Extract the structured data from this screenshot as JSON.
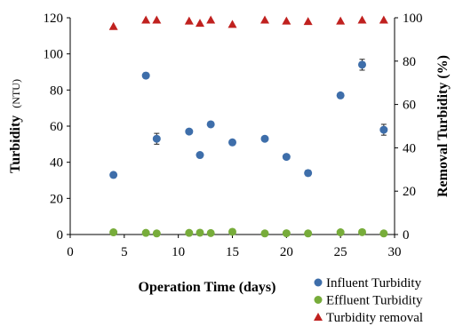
{
  "chart_data": {
    "type": "scatter",
    "xlabel": "Operation Time (days)",
    "ylabel_main": "Turbidity",
    "ylabel_unit": "(NTU)",
    "y2label": "Removal Turbidity (%)",
    "xlim": [
      0,
      30
    ],
    "ylim": [
      0,
      120
    ],
    "y2lim": [
      0,
      100
    ],
    "xticks": [
      0,
      5,
      10,
      15,
      20,
      25,
      30
    ],
    "yticks": [
      0,
      20,
      40,
      60,
      80,
      100,
      120
    ],
    "y2ticks": [
      0,
      20,
      40,
      60,
      80,
      100
    ],
    "grid": false,
    "legend_position": "bottom-right",
    "series": [
      {
        "name": "Influent Turbidity",
        "axis": "left",
        "marker": "circle",
        "color": "#3e6eaa",
        "x": [
          4,
          7,
          8,
          11,
          12,
          13,
          15,
          18,
          20,
          22,
          25,
          27,
          29
        ],
        "y": [
          33,
          88,
          53,
          57,
          44,
          61,
          51,
          53,
          43,
          34,
          77,
          94,
          58
        ],
        "error": [
          1,
          1.5,
          3,
          1,
          1,
          1,
          1,
          1,
          1,
          1.5,
          1,
          3,
          3
        ]
      },
      {
        "name": "Effluent Turbidity",
        "axis": "left",
        "marker": "circle",
        "color": "#77ac3a",
        "x": [
          4,
          7,
          8,
          11,
          12,
          13,
          15,
          18,
          20,
          22,
          25,
          27,
          29
        ],
        "y": [
          1.2,
          0.9,
          0.6,
          0.9,
          1.0,
          0.8,
          1.5,
          0.6,
          0.7,
          0.6,
          1.2,
          1.3,
          0.6
        ]
      },
      {
        "name": "Turbidity removal",
        "axis": "right",
        "marker": "triangle",
        "color": "#c0211f",
        "x": [
          4,
          7,
          8,
          11,
          12,
          13,
          15,
          18,
          20,
          22,
          25,
          27,
          29
        ],
        "y": [
          96,
          99,
          99,
          98.5,
          97.5,
          99,
          97,
          99,
          98.5,
          98.3,
          98.5,
          99,
          99
        ]
      }
    ]
  }
}
